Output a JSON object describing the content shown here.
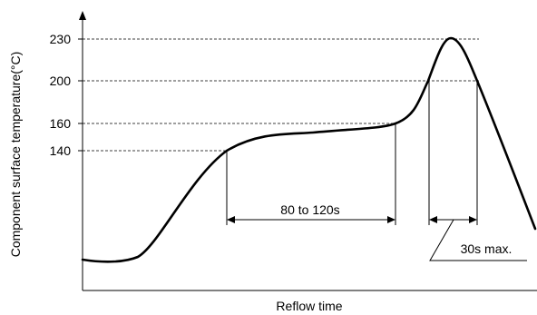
{
  "chart_data": {
    "type": "line",
    "title": "",
    "xlabel": "Reflow time",
    "ylabel": "Component surface temperature(°C)",
    "y_ticks": [
      "230",
      "200",
      "160",
      "140"
    ],
    "annotations": {
      "preheat_window": "80 to 120s",
      "peak_window": "30s max."
    },
    "grid": "dashed reference lines at 230, 200, 160, 140",
    "legend": "none"
  }
}
